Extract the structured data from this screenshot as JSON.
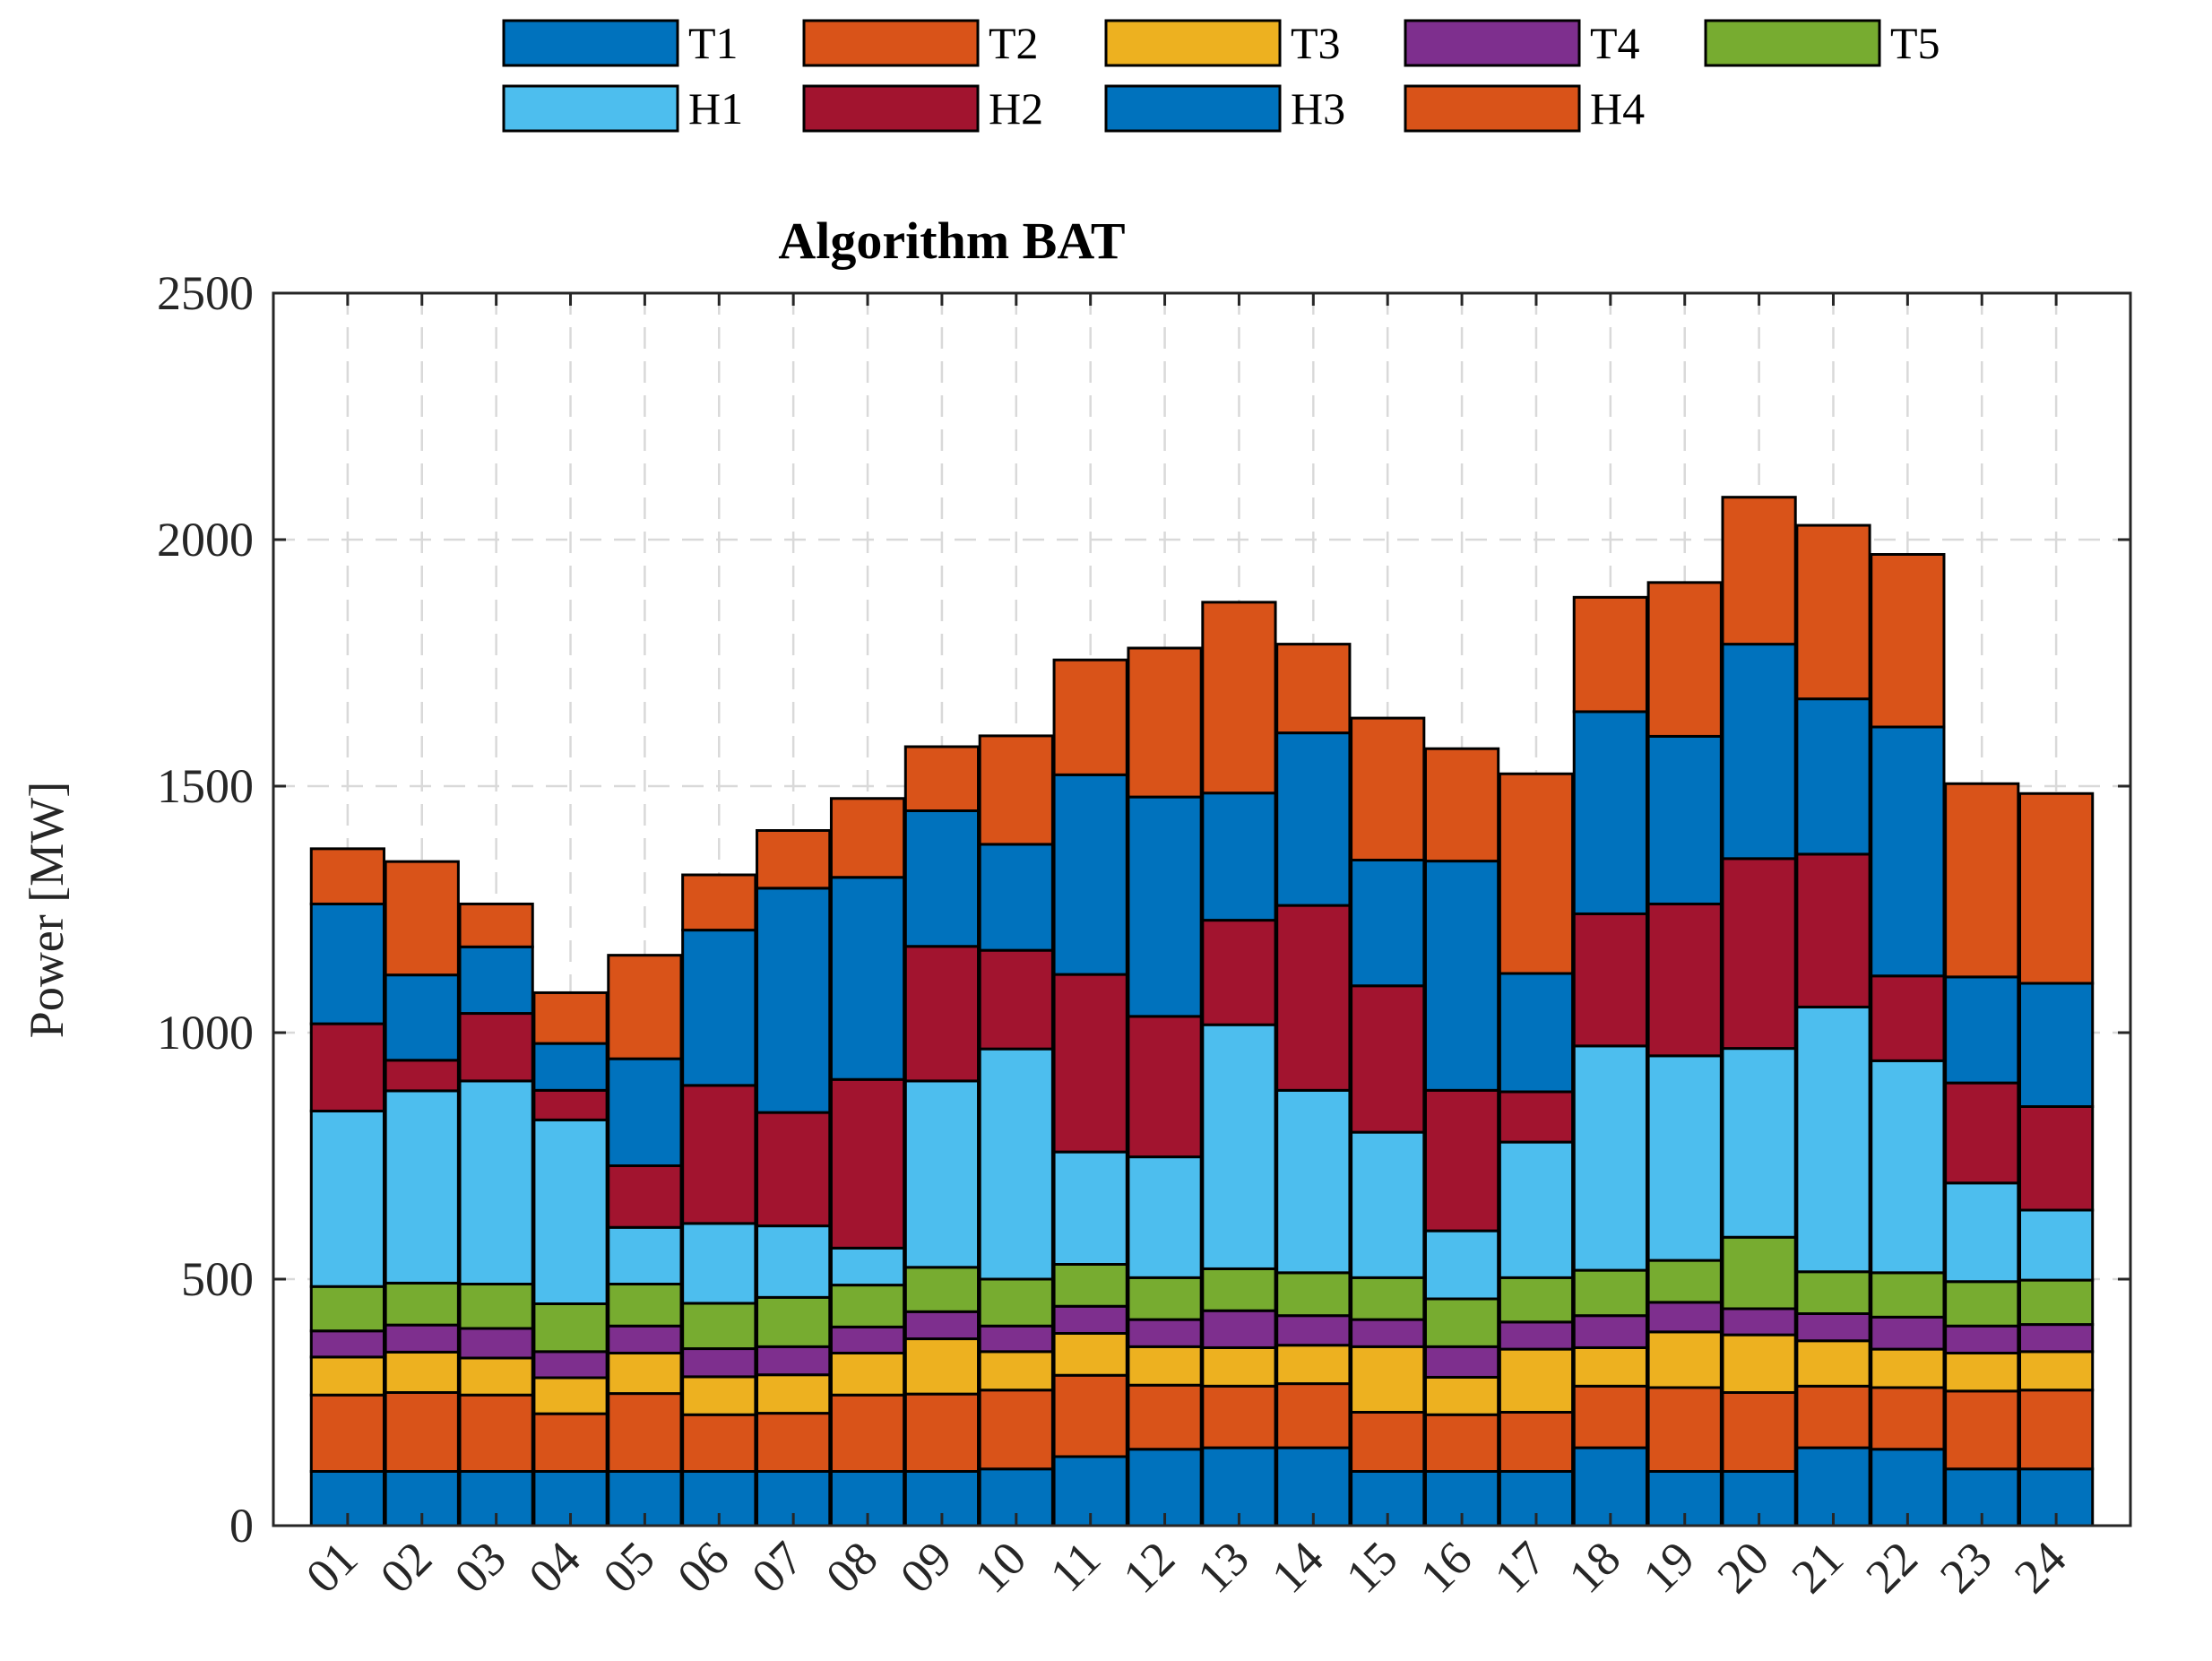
{
  "chart_data": {
    "type": "bar",
    "stacked": true,
    "title": "Algorithm BAT",
    "xlabel": "",
    "ylabel": "Power [MW]",
    "ylim": [
      0,
      2500
    ],
    "yticks": [
      "0",
      "500",
      "1000",
      "1500",
      "2000",
      "2500"
    ],
    "grid": true,
    "legend_position": "top",
    "categories": [
      "01",
      "02",
      "03",
      "04",
      "05",
      "06",
      "07",
      "08",
      "09",
      "10",
      "11",
      "12",
      "13",
      "14",
      "15",
      "16",
      "17",
      "18",
      "19",
      "20",
      "21",
      "22",
      "23",
      "24"
    ],
    "series": [
      {
        "name": "T1",
        "color": "#0072BD",
        "values": [
          110,
          110,
          110,
          110,
          110,
          110,
          110,
          110,
          110,
          115,
          140,
          155,
          158,
          158,
          110,
          110,
          110,
          158,
          110,
          110,
          158,
          155,
          115,
          115
        ]
      },
      {
        "name": "T2",
        "color": "#D95319",
        "values": [
          155,
          160,
          155,
          117,
          158,
          115,
          118,
          155,
          157,
          160,
          165,
          130,
          125,
          130,
          120,
          115,
          120,
          125,
          170,
          160,
          125,
          125,
          158,
          160
        ]
      },
      {
        "name": "T3",
        "color": "#EDB120",
        "values": [
          77,
          82,
          75,
          73,
          82,
          77,
          78,
          85,
          112,
          78,
          85,
          78,
          78,
          78,
          133,
          76,
          128,
          78,
          113,
          117,
          92,
          78,
          77,
          78
        ]
      },
      {
        "name": "T4",
        "color": "#7E2F8E",
        "values": [
          53,
          55,
          60,
          53,
          55,
          57,
          57,
          53,
          55,
          52,
          55,
          55,
          75,
          60,
          55,
          62,
          55,
          65,
          60,
          53,
          55,
          65,
          55,
          55
        ]
      },
      {
        "name": "T5",
        "color": "#77AC30",
        "values": [
          90,
          85,
          90,
          97,
          85,
          92,
          100,
          85,
          90,
          95,
          85,
          85,
          85,
          87,
          85,
          97,
          90,
          92,
          85,
          145,
          85,
          90,
          90,
          90
        ]
      },
      {
        "name": "H1",
        "color": "#4DBEEE",
        "values": [
          356,
          390,
          412,
          373,
          115,
          162,
          145,
          75,
          378,
          467,
          228,
          245,
          495,
          370,
          295,
          138,
          275,
          455,
          415,
          383,
          537,
          430,
          200,
          142
        ]
      },
      {
        "name": "H2",
        "color": "#A2142F",
        "values": [
          177,
          62,
          137,
          60,
          125,
          280,
          230,
          342,
          273,
          200,
          360,
          285,
          212,
          375,
          297,
          285,
          102,
          268,
          308,
          385,
          310,
          172,
          203,
          210
        ]
      },
      {
        "name": "H3",
        "color": "#0072BD",
        "values": [
          243,
          173,
          135,
          95,
          217,
          315,
          455,
          410,
          275,
          215,
          405,
          445,
          258,
          350,
          255,
          465,
          240,
          410,
          340,
          435,
          315,
          505,
          215,
          250
        ]
      },
      {
        "name": "H4",
        "color": "#D95319",
        "values": [
          112,
          230,
          87,
          103,
          210,
          112,
          117,
          160,
          130,
          220,
          233,
          302,
          387,
          180,
          288,
          228,
          405,
          232,
          312,
          298,
          352,
          350,
          392,
          385
        ]
      }
    ]
  }
}
